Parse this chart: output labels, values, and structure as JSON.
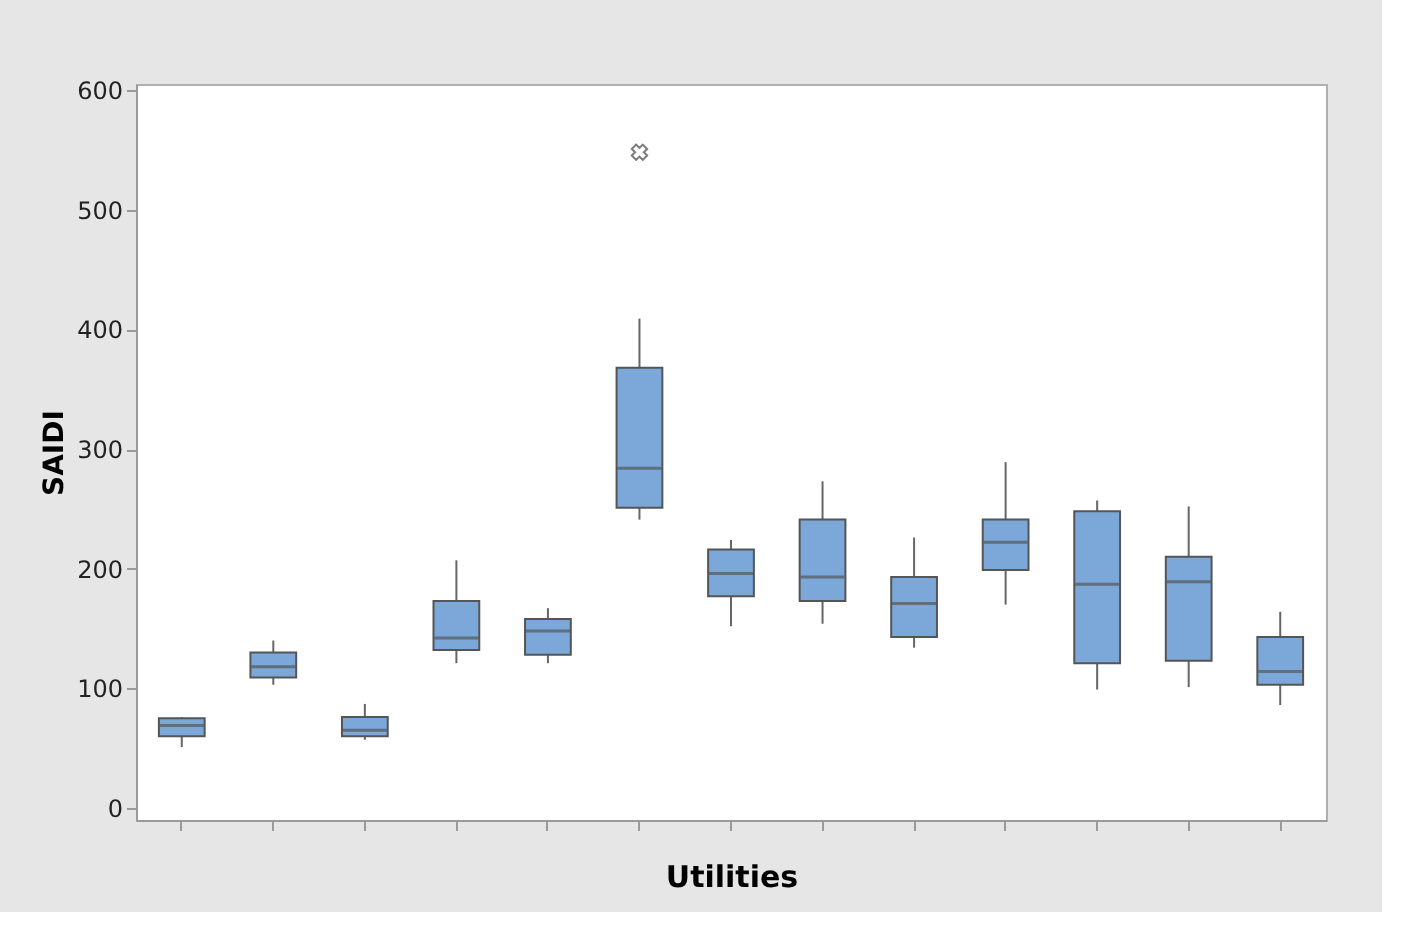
{
  "chart_data": {
    "type": "box",
    "xlabel": "Utilities",
    "ylabel": "SAIDI",
    "categories": [
      null,
      null,
      null,
      null,
      null,
      null,
      null,
      null,
      null,
      null,
      null,
      null,
      null
    ],
    "color": "#7ba7d9",
    "boxes": [
      {
        "low": 51,
        "q1": 60,
        "median": 69,
        "q3": 75,
        "high": 76
      },
      {
        "low": 103,
        "q1": 109,
        "median": 118,
        "q3": 130,
        "high": 140
      },
      {
        "low": 57,
        "q1": 60,
        "median": 65,
        "q3": 76,
        "high": 87
      },
      {
        "low": 121,
        "q1": 132,
        "median": 142,
        "q3": 173,
        "high": 207
      },
      {
        "low": 121,
        "q1": 128,
        "median": 148,
        "q3": 158,
        "high": 167
      },
      {
        "low": 241,
        "q1": 251,
        "median": 284,
        "q3": 368,
        "high": 409,
        "outliers": [
          548
        ]
      },
      {
        "low": 152,
        "q1": 177,
        "median": 196,
        "q3": 216,
        "high": 224
      },
      {
        "low": 154,
        "q1": 173,
        "median": 193,
        "q3": 241,
        "high": 273
      },
      {
        "low": 134,
        "q1": 143,
        "median": 171,
        "q3": 193,
        "high": 226
      },
      {
        "low": 170,
        "q1": 199,
        "median": 222,
        "q3": 241,
        "high": 289
      },
      {
        "low": 99,
        "q1": 121,
        "median": 187,
        "q3": 248,
        "high": 257
      },
      {
        "low": 101,
        "q1": 123,
        "median": 189,
        "q3": 210,
        "high": 252
      },
      {
        "low": 86,
        "q1": 103,
        "median": 114,
        "q3": 143,
        "high": 164
      }
    ],
    "ylim": [
      -10,
      605
    ],
    "yticks": [
      0,
      100,
      200,
      300,
      400,
      500,
      600
    ],
    "grid": false,
    "marker": "cross"
  }
}
